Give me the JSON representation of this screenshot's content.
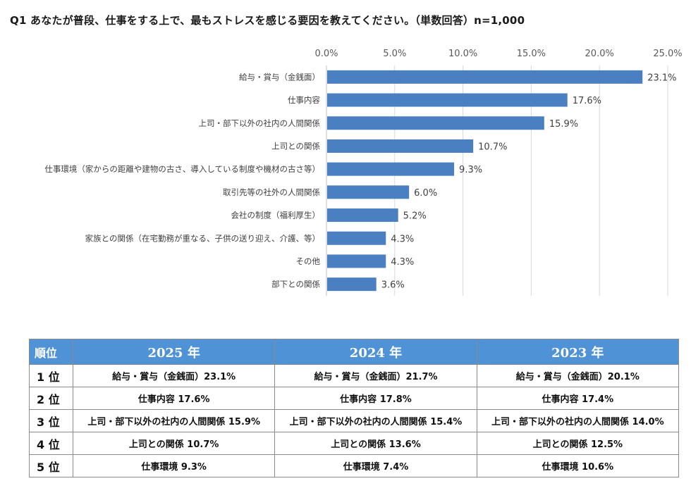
{
  "title": "Q1 あなたが普段、仕事をする上で、最もストレスを感じる要因を教えてください。（単数回答）n=1,000",
  "colors": {
    "bar": "#4a7fc1",
    "grid": "#d9d9d9",
    "table_header": "#4f93d6"
  },
  "chart_data": {
    "type": "bar",
    "orientation": "horizontal",
    "title": "",
    "xlabel": "",
    "ylabel": "",
    "xlim": [
      0,
      25
    ],
    "x_ticks": [
      "0.0%",
      "5.0%",
      "10.0%",
      "15.0%",
      "20.0%",
      "25.0%"
    ],
    "x_axis_position": "top",
    "grid": true,
    "legend": "none",
    "categories": [
      "給与・賞与（金銭面）",
      "仕事内容",
      "上司・部下以外の社内の人間関係",
      "上司との関係",
      "仕事環境（家からの距離や建物の古さ、導入している制度や機材の古さ等）",
      "取引先等の社外の人間関係",
      "会社の制度（福利厚生）",
      "家族との関係（在宅勤務が重なる、子供の送り迎え、介護、等）",
      "その他",
      "部下との関係"
    ],
    "values": [
      23.1,
      17.6,
      15.9,
      10.7,
      9.3,
      6.0,
      5.2,
      4.3,
      4.3,
      3.6
    ],
    "value_labels": [
      "23.1%",
      "17.6%",
      "15.9%",
      "10.7%",
      "9.3%",
      "6.0%",
      "5.2%",
      "4.3%",
      "4.3%",
      "3.6%"
    ]
  },
  "ranking_table": {
    "rank_header": "順位",
    "years": [
      "2025 年",
      "2024 年",
      "2023 年"
    ],
    "rows": [
      {
        "rank": "1 位",
        "cells": [
          "給与・賞与（金銭面）23.1%",
          "給与・賞与（金銭面）21.7%",
          "給与・賞与（金銭面）20.1%"
        ]
      },
      {
        "rank": "2 位",
        "cells": [
          "仕事内容 17.6%",
          "仕事内容 17.8%",
          "仕事内容 17.4%"
        ]
      },
      {
        "rank": "3 位",
        "cells": [
          "上司・部下以外の社内の人間関係 15.9%",
          "上司・部下以外の社内の人間関係 15.4%",
          "上司・部下以外の社内の人間関係 14.0%"
        ]
      },
      {
        "rank": "4 位",
        "cells": [
          "上司との関係 10.7%",
          "上司との関係 13.6%",
          "上司との関係 12.5%"
        ]
      },
      {
        "rank": "5 位",
        "cells": [
          "仕事環境 9.3%",
          "仕事環境 7.4%",
          "仕事環境 10.6%"
        ]
      }
    ]
  }
}
